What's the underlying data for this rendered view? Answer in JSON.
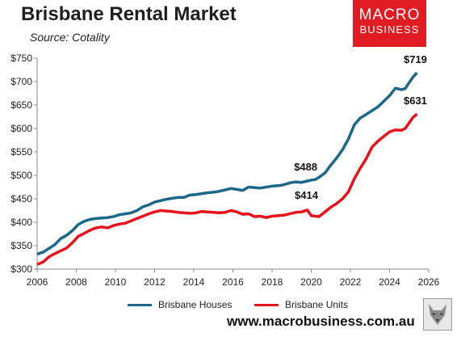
{
  "header": {
    "title": "Brisbane Rental Market",
    "subtitle": "Source: Cotality",
    "logo_line1": "MACRO",
    "logo_line2": "BUSINESS"
  },
  "footer": {
    "website": "www.macrobusiness.com.au",
    "wolf_icon": "wolf-icon"
  },
  "colors": {
    "houses": "#1d6788",
    "units": "#e8131a",
    "brand": "#e01b22"
  },
  "chart_data": {
    "type": "line",
    "title": "Brisbane Rental Market",
    "xlabel": "",
    "ylabel": "",
    "xlim": [
      2006,
      2026
    ],
    "ylim": [
      300,
      750
    ],
    "x_ticks": [
      2006,
      2008,
      2010,
      2012,
      2014,
      2016,
      2018,
      2020,
      2022,
      2024,
      2026
    ],
    "y_ticks": [
      300,
      350,
      400,
      450,
      500,
      550,
      600,
      650,
      700,
      750
    ],
    "y_tick_labels": [
      "$300",
      "$350",
      "$400",
      "$450",
      "$500",
      "$550",
      "$600",
      "$650",
      "$700",
      "$750"
    ],
    "grid": false,
    "legend_position": "bottom",
    "series": [
      {
        "name": "Brisbane Houses",
        "color": "#1d6788",
        "points": [
          [
            2006.0,
            332
          ],
          [
            2006.3,
            336
          ],
          [
            2006.6,
            344
          ],
          [
            2006.9,
            352
          ],
          [
            2007.2,
            365
          ],
          [
            2007.5,
            372
          ],
          [
            2007.8,
            382
          ],
          [
            2008.1,
            395
          ],
          [
            2008.4,
            402
          ],
          [
            2008.7,
            406
          ],
          [
            2009.0,
            408
          ],
          [
            2009.3,
            409
          ],
          [
            2009.6,
            410
          ],
          [
            2009.9,
            412
          ],
          [
            2010.2,
            416
          ],
          [
            2010.5,
            418
          ],
          [
            2010.8,
            420
          ],
          [
            2011.1,
            425
          ],
          [
            2011.4,
            433
          ],
          [
            2011.7,
            437
          ],
          [
            2012.0,
            443
          ],
          [
            2012.3,
            446
          ],
          [
            2012.6,
            449
          ],
          [
            2012.9,
            451
          ],
          [
            2013.2,
            453
          ],
          [
            2013.5,
            453
          ],
          [
            2013.8,
            458
          ],
          [
            2014.1,
            459
          ],
          [
            2014.4,
            461
          ],
          [
            2014.7,
            463
          ],
          [
            2015.0,
            464
          ],
          [
            2015.3,
            466
          ],
          [
            2015.6,
            469
          ],
          [
            2015.9,
            472
          ],
          [
            2016.2,
            470
          ],
          [
            2016.5,
            468
          ],
          [
            2016.8,
            475
          ],
          [
            2017.1,
            474
          ],
          [
            2017.4,
            473
          ],
          [
            2017.7,
            475
          ],
          [
            2018.0,
            477
          ],
          [
            2018.3,
            478
          ],
          [
            2018.6,
            480
          ],
          [
            2018.9,
            484
          ],
          [
            2019.2,
            486
          ],
          [
            2019.5,
            485
          ],
          [
            2019.8,
            488
          ],
          [
            2020.0,
            490
          ],
          [
            2020.2,
            491
          ],
          [
            2020.4,
            496
          ],
          [
            2020.7,
            505
          ],
          [
            2021.0,
            522
          ],
          [
            2021.3,
            537
          ],
          [
            2021.6,
            555
          ],
          [
            2021.9,
            578
          ],
          [
            2022.2,
            608
          ],
          [
            2022.5,
            622
          ],
          [
            2022.8,
            630
          ],
          [
            2023.1,
            638
          ],
          [
            2023.4,
            646
          ],
          [
            2023.7,
            658
          ],
          [
            2024.0,
            670
          ],
          [
            2024.3,
            686
          ],
          [
            2024.6,
            683
          ],
          [
            2024.8,
            685
          ],
          [
            2025.0,
            698
          ],
          [
            2025.2,
            710
          ],
          [
            2025.4,
            719
          ]
        ]
      },
      {
        "name": "Brisbane Units",
        "color": "#e8131a",
        "points": [
          [
            2006.0,
            310
          ],
          [
            2006.3,
            315
          ],
          [
            2006.6,
            326
          ],
          [
            2006.9,
            333
          ],
          [
            2007.2,
            339
          ],
          [
            2007.5,
            345
          ],
          [
            2007.8,
            356
          ],
          [
            2008.1,
            370
          ],
          [
            2008.4,
            376
          ],
          [
            2008.7,
            383
          ],
          [
            2009.0,
            388
          ],
          [
            2009.3,
            390
          ],
          [
            2009.6,
            388
          ],
          [
            2009.9,
            393
          ],
          [
            2010.2,
            396
          ],
          [
            2010.5,
            398
          ],
          [
            2010.8,
            403
          ],
          [
            2011.1,
            408
          ],
          [
            2011.4,
            413
          ],
          [
            2011.7,
            418
          ],
          [
            2012.0,
            422
          ],
          [
            2012.3,
            425
          ],
          [
            2012.6,
            424
          ],
          [
            2012.9,
            423
          ],
          [
            2013.2,
            421
          ],
          [
            2013.5,
            420
          ],
          [
            2013.8,
            419
          ],
          [
            2014.1,
            420
          ],
          [
            2014.4,
            423
          ],
          [
            2014.7,
            422
          ],
          [
            2015.0,
            421
          ],
          [
            2015.3,
            420
          ],
          [
            2015.6,
            421
          ],
          [
            2015.9,
            425
          ],
          [
            2016.2,
            422
          ],
          [
            2016.5,
            417
          ],
          [
            2016.8,
            418
          ],
          [
            2017.1,
            412
          ],
          [
            2017.4,
            413
          ],
          [
            2017.7,
            410
          ],
          [
            2018.0,
            413
          ],
          [
            2018.3,
            414
          ],
          [
            2018.6,
            415
          ],
          [
            2018.9,
            418
          ],
          [
            2019.2,
            421
          ],
          [
            2019.5,
            422
          ],
          [
            2019.8,
            426
          ],
          [
            2020.0,
            414
          ],
          [
            2020.2,
            413
          ],
          [
            2020.4,
            412
          ],
          [
            2020.7,
            422
          ],
          [
            2021.0,
            432
          ],
          [
            2021.3,
            440
          ],
          [
            2021.6,
            450
          ],
          [
            2021.9,
            465
          ],
          [
            2022.2,
            493
          ],
          [
            2022.5,
            515
          ],
          [
            2022.8,
            535
          ],
          [
            2023.1,
            560
          ],
          [
            2023.4,
            573
          ],
          [
            2023.7,
            583
          ],
          [
            2024.0,
            593
          ],
          [
            2024.3,
            597
          ],
          [
            2024.6,
            596
          ],
          [
            2024.8,
            600
          ],
          [
            2025.0,
            612
          ],
          [
            2025.2,
            624
          ],
          [
            2025.4,
            631
          ]
        ]
      }
    ],
    "annotations": [
      {
        "label": "$719",
        "series": "Brisbane Houses",
        "x": 2025.4,
        "y": 719
      },
      {
        "label": "$631",
        "series": "Brisbane Units",
        "x": 2025.4,
        "y": 631
      },
      {
        "label": "$488",
        "series": "Brisbane Houses",
        "x": 2019.8,
        "y": 488
      },
      {
        "label": "$414",
        "series": "Brisbane Units",
        "x": 2020.0,
        "y": 414
      }
    ]
  }
}
